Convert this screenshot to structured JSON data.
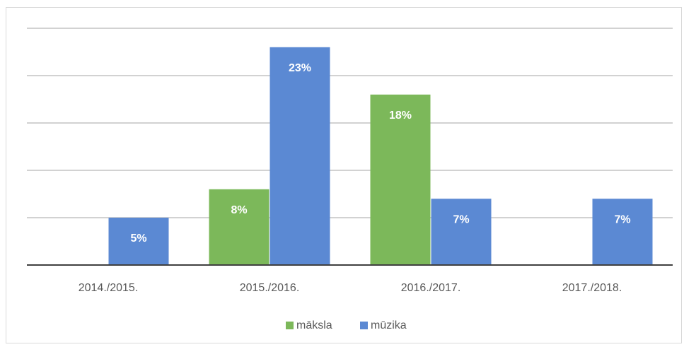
{
  "chart_data": {
    "type": "bar",
    "categories": [
      "2014./2015.",
      "2015./2016.",
      "2016./2017.",
      "2017./2018."
    ],
    "series": [
      {
        "name": "māksla",
        "color": "#7cb85a",
        "values": [
          null,
          8,
          18,
          null
        ],
        "value_labels": [
          null,
          "8%",
          "18%",
          null
        ]
      },
      {
        "name": "mūzika",
        "color": "#5b89d3",
        "values": [
          5,
          23,
          7,
          7
        ],
        "value_labels": [
          "5%",
          "23%",
          "7%",
          "7%"
        ]
      }
    ],
    "ylim": [
      0,
      25
    ],
    "yticks": [
      0,
      5,
      10,
      15,
      20,
      25
    ],
    "grid": true,
    "legend": "bottom"
  }
}
